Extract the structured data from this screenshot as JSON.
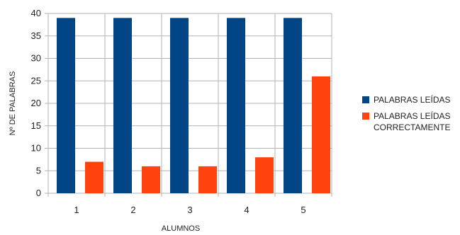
{
  "chart_data": {
    "type": "bar",
    "xlabel": "ALUMNOS",
    "ylabel": "Nº DE PALABRAS",
    "ylim": [
      0,
      40
    ],
    "yticks": [
      0,
      5,
      10,
      15,
      20,
      25,
      30,
      35,
      40
    ],
    "categories": [
      "1",
      "2",
      "3",
      "4",
      "5"
    ],
    "grid": true,
    "legend_position": "right",
    "series": [
      {
        "name": "PALABRAS LEÍDAS",
        "color": "#004586",
        "values": [
          39,
          39,
          39,
          39,
          39
        ]
      },
      {
        "name": "PALABRAS LEÍDAS\nCORRECTAMENTE",
        "color": "#ff420e",
        "values": [
          7,
          6,
          6,
          8,
          26
        ]
      }
    ]
  }
}
